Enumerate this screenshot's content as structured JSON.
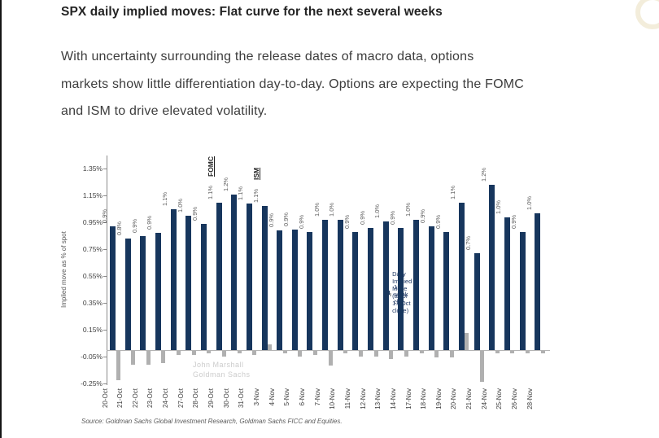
{
  "page": {
    "title": "SPX daily implied moves: Flat curve for the next several weeks",
    "body_lines": [
      "With uncertainty surrounding the release dates of macro data, options",
      "markets show little differentiation day-to-day. Options are expecting the FOMC",
      "and ISM to drive elevated volatility."
    ],
    "watermark_lines": [
      "John Marshall",
      "Goldman Sachs"
    ],
    "source": "Source: Goldman Sachs Global Investment Research, Goldman Sachs FICC and Equities."
  },
  "chart_data": {
    "type": "bar",
    "title": "",
    "xlabel": "",
    "ylabel": "Implied move as % of spot",
    "ylim": [
      -0.25,
      1.45
    ],
    "ytick_labels": [
      "1.35%",
      "1.15%",
      "0.95%",
      "0.75%",
      "0.55%",
      "0.35%",
      "0.15%",
      "-0.05%",
      "-0.25%"
    ],
    "grid": false,
    "zero_line": true,
    "legend_position": "top-right",
    "categories": [
      "20-Oct",
      "21-Oct",
      "22-Oct",
      "23-Oct",
      "24-Oct",
      "27-Oct",
      "28-Oct",
      "29-Oct",
      "30-Oct",
      "31-Oct",
      "3-Nov",
      "4-Nov",
      "5-Nov",
      "6-Nov",
      "7-Nov",
      "10-Nov",
      "11-Nov",
      "12-Nov",
      "13-Nov",
      "14-Nov",
      "17-Nov",
      "18-Nov",
      "19-Nov",
      "20-Nov",
      "21-Nov",
      "24-Nov",
      "25-Nov",
      "26-Nov",
      "28-Nov"
    ],
    "series": [
      {
        "name": "Daily Implied Move (as of 17-Oct close)",
        "color": "#17365d",
        "values": [
          0.92,
          0.83,
          0.85,
          0.87,
          1.05,
          1.0,
          0.94,
          1.1,
          1.16,
          1.09,
          1.07,
          0.89,
          0.9,
          0.88,
          0.97,
          0.97,
          0.88,
          0.91,
          0.96,
          0.91,
          0.97,
          0.92,
          0.88,
          1.1,
          0.72,
          1.23,
          0.99,
          0.88,
          1.02
        ],
        "bar_labels": [
          "0.9%",
          "0.8%",
          "0.9%",
          "0.9%",
          "1.1%",
          "1.0%",
          "0.9%",
          "1.1%",
          "1.2%",
          "1.1%",
          "1.1%",
          "0.9%",
          "0.9%",
          "0.9%",
          "1.0%",
          "1.0%",
          "0.9%",
          "0.9%",
          "1.0%",
          "0.9%",
          "1.0%",
          "0.9%",
          "0.9%",
          "1.1%",
          "0.7%",
          "1.2%",
          "1.0%",
          "0.9%",
          "1.0%"
        ]
      },
      {
        "name": "1-week chg",
        "color": "#b0b0b0",
        "values": [
          -0.22,
          -0.1,
          -0.1,
          -0.09,
          -0.03,
          -0.03,
          -0.02,
          -0.04,
          -0.02,
          -0.03,
          0.04,
          -0.02,
          -0.04,
          -0.03,
          -0.11,
          -0.02,
          -0.04,
          -0.04,
          -0.06,
          -0.04,
          -0.02,
          -0.05,
          -0.05,
          0.13,
          -0.23,
          -0.02,
          -0.02,
          -0.02,
          -0.02
        ]
      }
    ],
    "annotations": [
      {
        "index": 7,
        "text": "FOMC"
      },
      {
        "index": 10,
        "text": "ISM"
      }
    ]
  }
}
